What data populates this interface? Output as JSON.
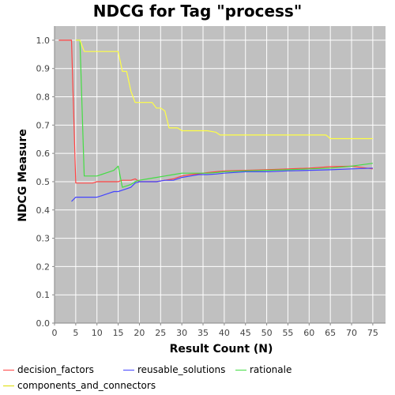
{
  "chart_data": {
    "type": "line",
    "title": "NDCG for Tag \"process\"",
    "xlabel": "Result Count (N)",
    "ylabel": "NDCG Measure",
    "xlim": [
      0,
      78
    ],
    "ylim": [
      0.0,
      1.05
    ],
    "xticks": [
      0,
      5,
      10,
      15,
      20,
      25,
      30,
      35,
      40,
      45,
      50,
      55,
      60,
      65,
      70,
      75
    ],
    "yticks": [
      0.0,
      0.1,
      0.2,
      0.3,
      0.4,
      0.5,
      0.6,
      0.7,
      0.8,
      0.9,
      1.0
    ],
    "grid": true,
    "legend_position": "bottom",
    "series": [
      {
        "name": "decision_factors",
        "color": "#ff4444",
        "x": [
          1,
          2,
          3,
          4,
          5,
          6,
          7,
          8,
          9,
          10,
          11,
          12,
          13,
          14,
          15,
          16,
          17,
          18,
          19,
          20,
          22,
          24,
          26,
          28,
          30,
          32,
          34,
          36,
          38,
          40,
          45,
          50,
          55,
          60,
          65,
          70,
          75
        ],
        "y": [
          1.0,
          1.0,
          1.0,
          1.0,
          0.495,
          0.495,
          0.495,
          0.495,
          0.495,
          0.5,
          0.5,
          0.5,
          0.5,
          0.5,
          0.5,
          0.505,
          0.505,
          0.505,
          0.51,
          0.5,
          0.5,
          0.5,
          0.505,
          0.51,
          0.52,
          0.525,
          0.528,
          0.532,
          0.535,
          0.538,
          0.54,
          0.542,
          0.545,
          0.548,
          0.553,
          0.555,
          0.545
        ]
      },
      {
        "name": "reusable_solutions",
        "color": "#4444ff",
        "x": [
          4,
          5,
          6,
          7,
          8,
          9,
          10,
          11,
          12,
          13,
          14,
          15,
          16,
          17,
          18,
          19,
          20,
          22,
          24,
          26,
          28,
          30,
          32,
          34,
          36,
          38,
          40,
          45,
          50,
          55,
          60,
          65,
          70,
          75
        ],
        "y": [
          0.43,
          0.445,
          0.445,
          0.445,
          0.445,
          0.445,
          0.445,
          0.45,
          0.455,
          0.46,
          0.465,
          0.465,
          0.47,
          0.475,
          0.48,
          0.495,
          0.5,
          0.5,
          0.5,
          0.505,
          0.505,
          0.515,
          0.52,
          0.525,
          0.525,
          0.527,
          0.53,
          0.535,
          0.535,
          0.538,
          0.54,
          0.542,
          0.545,
          0.548
        ]
      },
      {
        "name": "rationale",
        "color": "#44dd44",
        "x": [
          5,
          6,
          7,
          8,
          9,
          10,
          11,
          12,
          13,
          14,
          15,
          16,
          17,
          18,
          19,
          20,
          22,
          24,
          26,
          28,
          30,
          32,
          34,
          36,
          38,
          40,
          45,
          50,
          55,
          60,
          65,
          70,
          75
        ],
        "y": [
          1.0,
          1.0,
          0.52,
          0.52,
          0.52,
          0.52,
          0.525,
          0.53,
          0.535,
          0.54,
          0.555,
          0.48,
          0.485,
          0.49,
          0.5,
          0.505,
          0.51,
          0.515,
          0.52,
          0.525,
          0.53,
          0.53,
          0.53,
          0.53,
          0.532,
          0.535,
          0.538,
          0.54,
          0.542,
          0.545,
          0.548,
          0.555,
          0.565
        ]
      },
      {
        "name": "components_and_connectors",
        "color": "#ffff44",
        "x": [
          5,
          6,
          7,
          8,
          9,
          10,
          11,
          12,
          13,
          14,
          15,
          16,
          17,
          18,
          19,
          20,
          21,
          22,
          23,
          24,
          25,
          26,
          27,
          28,
          29,
          30,
          32,
          34,
          36,
          38,
          39,
          40,
          45,
          50,
          55,
          60,
          64,
          65,
          70,
          75
        ],
        "y": [
          1.0,
          1.0,
          0.96,
          0.96,
          0.96,
          0.96,
          0.96,
          0.96,
          0.96,
          0.96,
          0.96,
          0.89,
          0.89,
          0.82,
          0.78,
          0.78,
          0.78,
          0.78,
          0.78,
          0.76,
          0.76,
          0.75,
          0.69,
          0.69,
          0.69,
          0.68,
          0.68,
          0.68,
          0.68,
          0.675,
          0.665,
          0.665,
          0.665,
          0.665,
          0.665,
          0.665,
          0.665,
          0.652,
          0.652,
          0.652
        ]
      }
    ]
  },
  "colors": {
    "plot_background": "#c0c0c0",
    "grid": "#ffffff"
  }
}
